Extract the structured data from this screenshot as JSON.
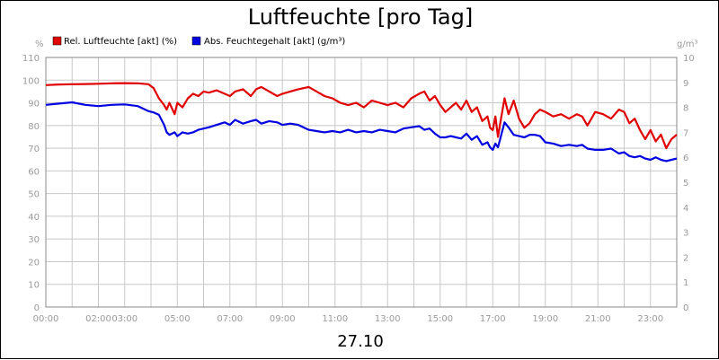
{
  "chart_data": {
    "type": "line",
    "title": "Luftfeuchte [pro Tag]",
    "footer_label": "27.10",
    "y_left_unit": "%",
    "y_right_unit": "g/m³",
    "y_left_range": [
      0,
      110
    ],
    "y_right_range": [
      0,
      10
    ],
    "x_range_hours": [
      0,
      24
    ],
    "grid": true,
    "legend_position": "top-left",
    "y_left_ticks": [
      "0",
      "10",
      "20",
      "30",
      "40",
      "50",
      "60",
      "70",
      "80",
      "90",
      "100",
      "110"
    ],
    "y_right_ticks": [
      "0",
      "1",
      "2",
      "3",
      "4",
      "5",
      "6",
      "7",
      "8",
      "9",
      "10"
    ],
    "x_ticks": [
      {
        "hour": 0,
        "label": "00:00"
      },
      {
        "hour": 2,
        "label": "02:00"
      },
      {
        "hour": 3,
        "label": "03:00"
      },
      {
        "hour": 5,
        "label": "05:00"
      },
      {
        "hour": 7,
        "label": "07:00"
      },
      {
        "hour": 9,
        "label": "09:00"
      },
      {
        "hour": 11,
        "label": "11:00"
      },
      {
        "hour": 13,
        "label": "13:00"
      },
      {
        "hour": 15,
        "label": "15:00"
      },
      {
        "hour": 17,
        "label": "17:00"
      },
      {
        "hour": 19,
        "label": "19:00"
      },
      {
        "hour": 21,
        "label": "21:00"
      },
      {
        "hour": 23,
        "label": "23:00"
      }
    ],
    "series": [
      {
        "name": "Rel. Luftfeuchte [akt] (%)",
        "color": "#e00000",
        "axis": "left",
        "x": [
          0,
          0.5,
          1,
          1.5,
          2,
          2.5,
          3,
          3.5,
          3.9,
          4.1,
          4.3,
          4.5,
          4.6,
          4.7,
          4.9,
          5.0,
          5.2,
          5.4,
          5.6,
          5.8,
          6.0,
          6.2,
          6.5,
          6.8,
          7.0,
          7.2,
          7.5,
          7.8,
          8.0,
          8.2,
          8.5,
          8.8,
          9.0,
          9.3,
          9.6,
          10.0,
          10.3,
          10.6,
          10.9,
          11.2,
          11.5,
          11.8,
          12.1,
          12.4,
          12.7,
          13.0,
          13.3,
          13.6,
          13.9,
          14.2,
          14.4,
          14.6,
          14.8,
          15.0,
          15.2,
          15.4,
          15.6,
          15.8,
          16.0,
          16.2,
          16.4,
          16.6,
          16.8,
          16.9,
          17.0,
          17.1,
          17.2,
          17.3,
          17.45,
          17.6,
          17.8,
          18.0,
          18.2,
          18.4,
          18.6,
          18.8,
          19.0,
          19.3,
          19.6,
          19.9,
          20.2,
          20.4,
          20.6,
          20.9,
          21.2,
          21.5,
          21.8,
          22.0,
          22.2,
          22.4,
          22.6,
          22.8,
          23.0,
          23.2,
          23.4,
          23.6,
          23.8,
          24.0
        ],
        "values": [
          97.8,
          98.1,
          98.2,
          98.3,
          98.4,
          98.6,
          98.7,
          98.6,
          98.2,
          96.5,
          92,
          89,
          87,
          90,
          85,
          90,
          88,
          92,
          94,
          93,
          95,
          94.5,
          95.5,
          94,
          93,
          95,
          96,
          93,
          96,
          97,
          95,
          93,
          94,
          95,
          96,
          97,
          95,
          93,
          92,
          90,
          89,
          90,
          88,
          91,
          90,
          89,
          90,
          88,
          92,
          94,
          95,
          91,
          93,
          89,
          86,
          88,
          90,
          87,
          91,
          86,
          88,
          82,
          84,
          79,
          78,
          84,
          75,
          82,
          92,
          85,
          91,
          83,
          79,
          81,
          85,
          87,
          86,
          84,
          85,
          83,
          85,
          84,
          80,
          86,
          85,
          83,
          87,
          86,
          81,
          83,
          78,
          74,
          78,
          73,
          76,
          70,
          74,
          76
        ]
      },
      {
        "name": "Abs. Feuchtegehalt [akt] (g/m³)",
        "color": "#0000e0",
        "axis": "right",
        "x": [
          0,
          0.5,
          1,
          1.5,
          2,
          2.5,
          3,
          3.5,
          3.9,
          4.1,
          4.3,
          4.5,
          4.6,
          4.7,
          4.9,
          5.0,
          5.2,
          5.4,
          5.6,
          5.8,
          6.0,
          6.2,
          6.5,
          6.8,
          7.0,
          7.2,
          7.5,
          7.8,
          8.0,
          8.2,
          8.5,
          8.8,
          9.0,
          9.3,
          9.6,
          10.0,
          10.3,
          10.6,
          10.9,
          11.2,
          11.5,
          11.8,
          12.1,
          12.4,
          12.7,
          13.0,
          13.3,
          13.6,
          13.9,
          14.2,
          14.4,
          14.6,
          14.8,
          15.0,
          15.2,
          15.4,
          15.6,
          15.8,
          16.0,
          16.2,
          16.4,
          16.6,
          16.8,
          16.9,
          17.0,
          17.1,
          17.2,
          17.3,
          17.45,
          17.6,
          17.8,
          18.0,
          18.2,
          18.4,
          18.6,
          18.8,
          19.0,
          19.3,
          19.6,
          19.9,
          20.2,
          20.4,
          20.6,
          20.9,
          21.2,
          21.5,
          21.8,
          22.0,
          22.2,
          22.4,
          22.6,
          22.8,
          23.0,
          23.2,
          23.4,
          23.6,
          23.8,
          24.0
        ],
        "values": [
          8.1,
          8.15,
          8.2,
          8.1,
          8.05,
          8.1,
          8.12,
          8.05,
          7.85,
          7.8,
          7.7,
          7.3,
          7.0,
          6.9,
          7.0,
          6.85,
          7.0,
          6.95,
          7.0,
          7.1,
          7.15,
          7.2,
          7.3,
          7.4,
          7.3,
          7.5,
          7.35,
          7.45,
          7.5,
          7.35,
          7.45,
          7.4,
          7.3,
          7.35,
          7.3,
          7.1,
          7.05,
          7.0,
          7.05,
          7.0,
          7.1,
          7.0,
          7.05,
          7.0,
          7.1,
          7.05,
          7.0,
          7.15,
          7.2,
          7.25,
          7.1,
          7.15,
          6.95,
          6.8,
          6.8,
          6.85,
          6.8,
          6.75,
          6.95,
          6.7,
          6.85,
          6.5,
          6.6,
          6.4,
          6.3,
          6.55,
          6.4,
          6.8,
          7.4,
          7.2,
          6.9,
          6.85,
          6.8,
          6.9,
          6.9,
          6.85,
          6.6,
          6.55,
          6.45,
          6.5,
          6.45,
          6.5,
          6.35,
          6.3,
          6.3,
          6.35,
          6.15,
          6.2,
          6.05,
          6.0,
          6.05,
          5.95,
          5.9,
          6.0,
          5.9,
          5.85,
          5.9,
          5.95
        ]
      }
    ]
  }
}
